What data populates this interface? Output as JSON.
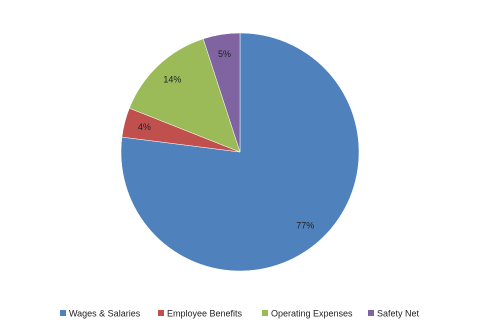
{
  "chart_data": {
    "type": "pie",
    "categories": [
      "Wages & Salaries",
      "Employee Benefits",
      "Operating Expenses",
      "Safety Net"
    ],
    "values": [
      77,
      4,
      14,
      5
    ],
    "value_labels": [
      "77%",
      "4%",
      "14%",
      "5%"
    ],
    "colors": [
      "#4f81bd",
      "#c0504d",
      "#9bbb59",
      "#8064a2"
    ],
    "legend": "bottom"
  }
}
